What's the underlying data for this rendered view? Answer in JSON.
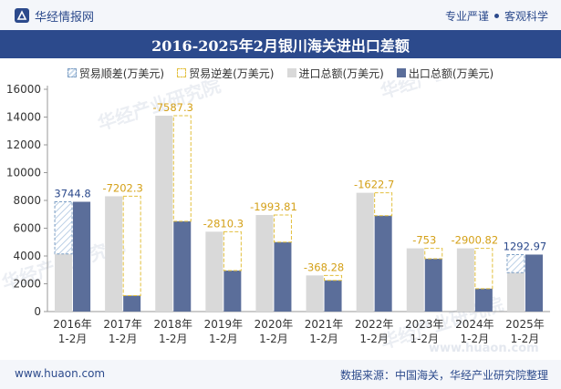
{
  "header": {
    "brand": "华经情报网",
    "slogan_left": "专业严谨",
    "slogan_right": "客观科学"
  },
  "title": "2016-2025年2月银川海关进出口差额",
  "footer": {
    "url": "www.huaon.com",
    "source": "数据来源：中国海关，华经产业研究院整理"
  },
  "watermarks": {
    "cn": "华经产业研究院",
    "url": "www.huaon.com"
  },
  "colors": {
    "import": "#d9d9d9",
    "export": "#5b6e9a",
    "surplus_border": "#7c9ec4",
    "deficit_border": "#e2bf3c",
    "brand": "#2c4a8c"
  },
  "chart_data": {
    "type": "bar",
    "title": "2016-2025年2月银川海关进出口差额",
    "categories": [
      "2016年\n1-2月",
      "2017年\n1-2月",
      "2018年\n1-2月",
      "2019年\n1-2月",
      "2020年\n1-2月",
      "2021年\n1-2月",
      "2022年\n1-2月",
      "2023年\n1-2月",
      "2024年\n1-2月",
      "2025年\n1-2月"
    ],
    "legend": [
      "贸易顺差(万美元)",
      "贸易逆差(万美元)",
      "进口总额(万美元)",
      "出口总额(万美元)"
    ],
    "series": [
      {
        "name": "进口总额(万美元)",
        "values": [
          4150,
          8300,
          14100,
          5750,
          6950,
          2600,
          8550,
          4550,
          4550,
          2800
        ]
      },
      {
        "name": "出口总额(万美元)",
        "values": [
          7900,
          1150,
          6500,
          2950,
          5000,
          2250,
          6900,
          3800,
          1650,
          4100
        ]
      }
    ],
    "balance": {
      "values": [
        3744.8,
        -7202.3,
        -7587.3,
        -2810.3,
        -1993.81,
        -368.28,
        -1622.7,
        -753,
        -2900.82,
        1292.97
      ],
      "labels": [
        "3744.8",
        "-7202.3",
        "-7587.3",
        "-2810.3",
        "-1993.81",
        "-368.28",
        "-1622.7",
        "-753",
        "-2900.82",
        "1292.97"
      ]
    },
    "yticks": [
      "0",
      "2000",
      "4000",
      "6000",
      "8000",
      "10000",
      "12000",
      "14000",
      "16000"
    ],
    "ylim": [
      0,
      16000
    ],
    "grid": false,
    "legend_position": "top"
  }
}
